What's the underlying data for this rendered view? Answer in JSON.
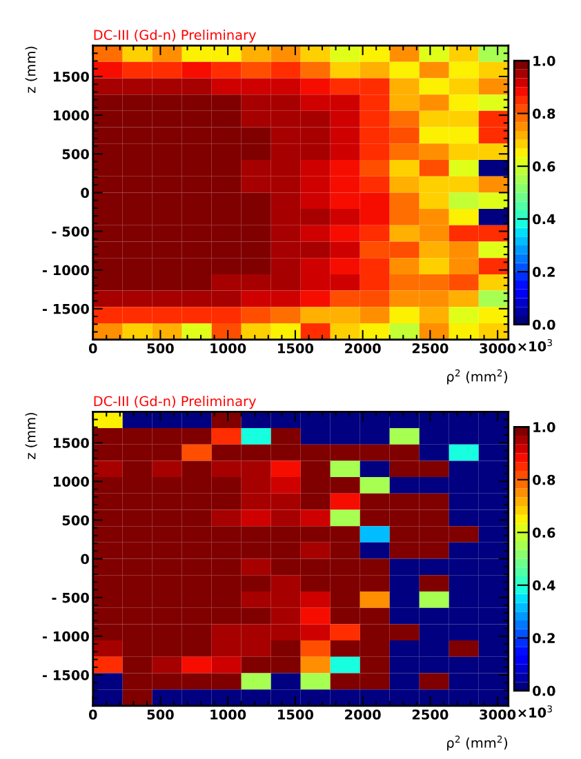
{
  "chart_data": [
    {
      "type": "heatmap",
      "title": "DC-III (Gd-n) Preliminary",
      "xlabel": "ρ$^{2}$ (mm$^{2}$)",
      "ylabel": "z (mm)",
      "annotations": [
        "×10$^{3}$"
      ],
      "x": [
        110,
        330,
        550,
        770,
        990,
        1210,
        1430,
        1650,
        1870,
        2090,
        2310,
        2530,
        2750,
        2970
      ],
      "y": [
        1794,
        1583,
        1372,
        1161,
        950,
        739,
        528,
        317,
        106,
        -106,
        -317,
        -528,
        -739,
        -950,
        -1161,
        -1372,
        -1583,
        -1794
      ],
      "xlim": [
        0,
        3080
      ],
      "ylim": [
        -1900,
        1900
      ],
      "xticks": [
        0,
        500,
        1000,
        1500,
        2000,
        2500,
        3000
      ],
      "yticks": [
        {
          "value": -1500,
          "label": "- 1500"
        },
        {
          "value": -1000,
          "label": "- 1000"
        },
        {
          "value": -500,
          "label": "- 500"
        },
        0,
        500,
        1000,
        1500
      ],
      "clim": [
        0,
        1
      ],
      "cticks": [
        {
          "value": 0,
          "label": "0.0"
        },
        {
          "value": 0.2,
          "label": "0.2"
        },
        {
          "value": 0.4,
          "label": "0.4"
        },
        {
          "value": 0.6,
          "label": "0.6"
        },
        {
          "value": 0.8,
          "label": "0.8"
        },
        {
          "value": 1,
          "label": "1.0"
        }
      ],
      "cells": [
        [
          0.78,
          0.69,
          0.75,
          0.65,
          0.65,
          0.72,
          0.75,
          0.69,
          0.6,
          0.65,
          0.75,
          0.6,
          0.69,
          0.54
        ],
        [
          0.88,
          0.85,
          0.85,
          0.88,
          0.85,
          0.82,
          0.85,
          0.78,
          0.69,
          0.72,
          0.65,
          0.75,
          0.65,
          0.69
        ],
        [
          0.95,
          0.95,
          0.95,
          0.95,
          0.92,
          0.92,
          0.92,
          0.88,
          0.85,
          0.85,
          0.72,
          0.65,
          0.69,
          0.75
        ],
        [
          1,
          1,
          1,
          1,
          1,
          0.95,
          0.95,
          0.92,
          0.9,
          0.85,
          0.72,
          0.75,
          0.65,
          0.6
        ],
        [
          1,
          1,
          1,
          1,
          1,
          0.95,
          0.95,
          0.95,
          0.92,
          0.85,
          0.78,
          0.69,
          0.69,
          0.85
        ],
        [
          1,
          1,
          1,
          1,
          1,
          1,
          0.95,
          0.95,
          0.92,
          0.85,
          0.82,
          0.65,
          0.65,
          0.85
        ],
        [
          1,
          1,
          1,
          1,
          1,
          1,
          0.95,
          0.95,
          0.92,
          0.85,
          0.78,
          0.75,
          0.69,
          0.69
        ],
        [
          1,
          1,
          1,
          1,
          1,
          0.95,
          0.95,
          0.92,
          0.88,
          0.82,
          0.69,
          0.82,
          0.62,
          0
        ],
        [
          1,
          1,
          1,
          1,
          1,
          0.95,
          0.95,
          0.92,
          0.88,
          0.85,
          0.72,
          0.69,
          0.69,
          0.75
        ],
        [
          1,
          1,
          1,
          1,
          1,
          1,
          0.95,
          0.92,
          0.88,
          0.88,
          0.78,
          0.69,
          0.57,
          0.63
        ],
        [
          1,
          1,
          1,
          1,
          1,
          1,
          0.95,
          0.95,
          0.92,
          0.88,
          0.78,
          0.75,
          0.65,
          0
        ],
        [
          1,
          1,
          1,
          1,
          1,
          1,
          0.95,
          0.92,
          0.88,
          0.85,
          0.72,
          0.75,
          0.85,
          0.85
        ],
        [
          1,
          1,
          1,
          1,
          1,
          1,
          0.95,
          0.95,
          0.92,
          0.82,
          0.82,
          0.72,
          0.75,
          0.6
        ],
        [
          1,
          1,
          1,
          1,
          1,
          1,
          0.95,
          0.92,
          0.88,
          0.85,
          0.75,
          0.69,
          0.75,
          0.85
        ],
        [
          1,
          1,
          1,
          1,
          0.95,
          0.95,
          0.95,
          0.92,
          0.92,
          0.85,
          0.78,
          0.78,
          0.82,
          0.69
        ],
        [
          0.95,
          0.95,
          0.95,
          0.95,
          0.95,
          0.92,
          0.92,
          0.88,
          0.82,
          0.82,
          0.75,
          0.75,
          0.72,
          0.54
        ],
        [
          0.85,
          0.85,
          0.85,
          0.85,
          0.85,
          0.82,
          0.78,
          0.72,
          0.72,
          0.75,
          0.65,
          0.72,
          0.62,
          0.65
        ],
        [
          0.75,
          0.69,
          0.72,
          0.6,
          0.82,
          0.69,
          0.65,
          0.85,
          0.69,
          0.65,
          0.57,
          0.75,
          0.65,
          0.69
        ]
      ]
    },
    {
      "type": "heatmap",
      "title": "DC-III (Gd-n) Preliminary",
      "xlabel": "ρ$^{2}$ (mm$^{2}$)",
      "ylabel": "z (mm)",
      "annotations": [
        "×10$^{3}$"
      ],
      "x": [
        110,
        330,
        550,
        770,
        990,
        1210,
        1430,
        1650,
        1870,
        2090,
        2310,
        2530,
        2750,
        2970
      ],
      "y": [
        1794,
        1583,
        1372,
        1161,
        950,
        739,
        528,
        317,
        106,
        -106,
        -317,
        -528,
        -739,
        -950,
        -1161,
        -1372,
        -1583,
        -1794
      ],
      "xlim": [
        0,
        3080
      ],
      "ylim": [
        -1900,
        1900
      ],
      "xticks": [
        0,
        500,
        1000,
        1500,
        2000,
        2500,
        3000
      ],
      "yticks": [
        {
          "value": -1500,
          "label": "- 1500"
        },
        {
          "value": -1000,
          "label": "- 1000"
        },
        {
          "value": -500,
          "label": "- 500"
        },
        0,
        500,
        1000,
        1500
      ],
      "clim": [
        0,
        1
      ],
      "cticks": [
        {
          "value": 0,
          "label": "0.0"
        },
        {
          "value": 0.2,
          "label": "0.2"
        },
        {
          "value": 0.4,
          "label": "0.4"
        },
        {
          "value": 0.6,
          "label": "0.6"
        },
        {
          "value": 0.8,
          "label": "0.8"
        },
        {
          "value": 1,
          "label": "1.0"
        }
      ],
      "cells": [
        [
          0.65,
          0,
          0,
          0,
          1,
          0,
          0,
          0,
          0,
          0,
          0,
          0,
          0,
          0
        ],
        [
          1,
          1,
          1,
          1,
          0.85,
          0.38,
          1,
          0,
          0,
          0,
          0.54,
          0,
          0,
          0
        ],
        [
          1,
          1,
          1,
          0.82,
          1,
          1,
          1,
          1,
          1,
          1,
          1,
          0,
          0.38,
          0
        ],
        [
          0.95,
          1,
          0.95,
          1,
          0.95,
          0.95,
          0.88,
          1,
          0.54,
          0,
          1,
          1,
          0,
          0
        ],
        [
          1,
          1,
          1,
          1,
          1,
          0.95,
          0.92,
          1,
          1,
          0.54,
          0,
          0,
          0,
          0
        ],
        [
          1,
          1,
          1,
          1,
          1,
          0.95,
          0.95,
          1,
          0.88,
          1,
          1,
          1,
          0,
          0
        ],
        [
          1,
          1,
          1,
          1,
          0.95,
          0.92,
          0.95,
          0.92,
          0.54,
          1,
          1,
          1,
          0,
          0
        ],
        [
          1,
          1,
          1,
          1,
          1,
          1,
          1,
          1,
          1,
          0.3,
          1,
          1,
          1,
          0
        ],
        [
          1,
          1,
          1,
          1,
          1,
          1,
          1,
          0.95,
          1,
          0,
          1,
          1,
          0,
          0
        ],
        [
          1,
          1,
          1,
          1,
          1,
          0.95,
          1,
          1,
          1,
          1,
          0,
          0,
          0,
          0
        ],
        [
          1,
          1,
          1,
          1,
          1,
          1,
          0.95,
          1,
          1,
          1,
          0,
          1,
          0,
          0
        ],
        [
          1,
          1,
          1,
          1,
          1,
          0.95,
          0.95,
          0.92,
          1,
          0.75,
          0,
          0.54,
          0,
          0
        ],
        [
          1,
          1,
          1,
          1,
          1,
          1,
          0.95,
          0.88,
          1,
          1,
          0,
          0,
          0,
          0
        ],
        [
          1,
          1,
          1,
          1,
          0.95,
          0.95,
          0.95,
          0.92,
          0.85,
          1,
          1,
          0,
          0,
          0
        ],
        [
          0.95,
          1,
          1,
          1,
          0.95,
          0.95,
          1,
          0.82,
          1,
          1,
          0,
          0,
          1,
          0
        ],
        [
          0.85,
          1,
          0.95,
          0.88,
          0.92,
          1,
          1,
          0.75,
          0.38,
          1,
          0,
          0,
          0,
          0
        ],
        [
          0,
          1,
          1,
          1,
          1,
          0.54,
          0,
          0.54,
          1,
          1,
          0,
          1,
          0,
          0
        ],
        [
          0,
          1,
          0,
          0,
          0,
          0,
          0,
          0,
          0,
          0,
          0,
          0,
          0,
          0
        ]
      ]
    }
  ]
}
